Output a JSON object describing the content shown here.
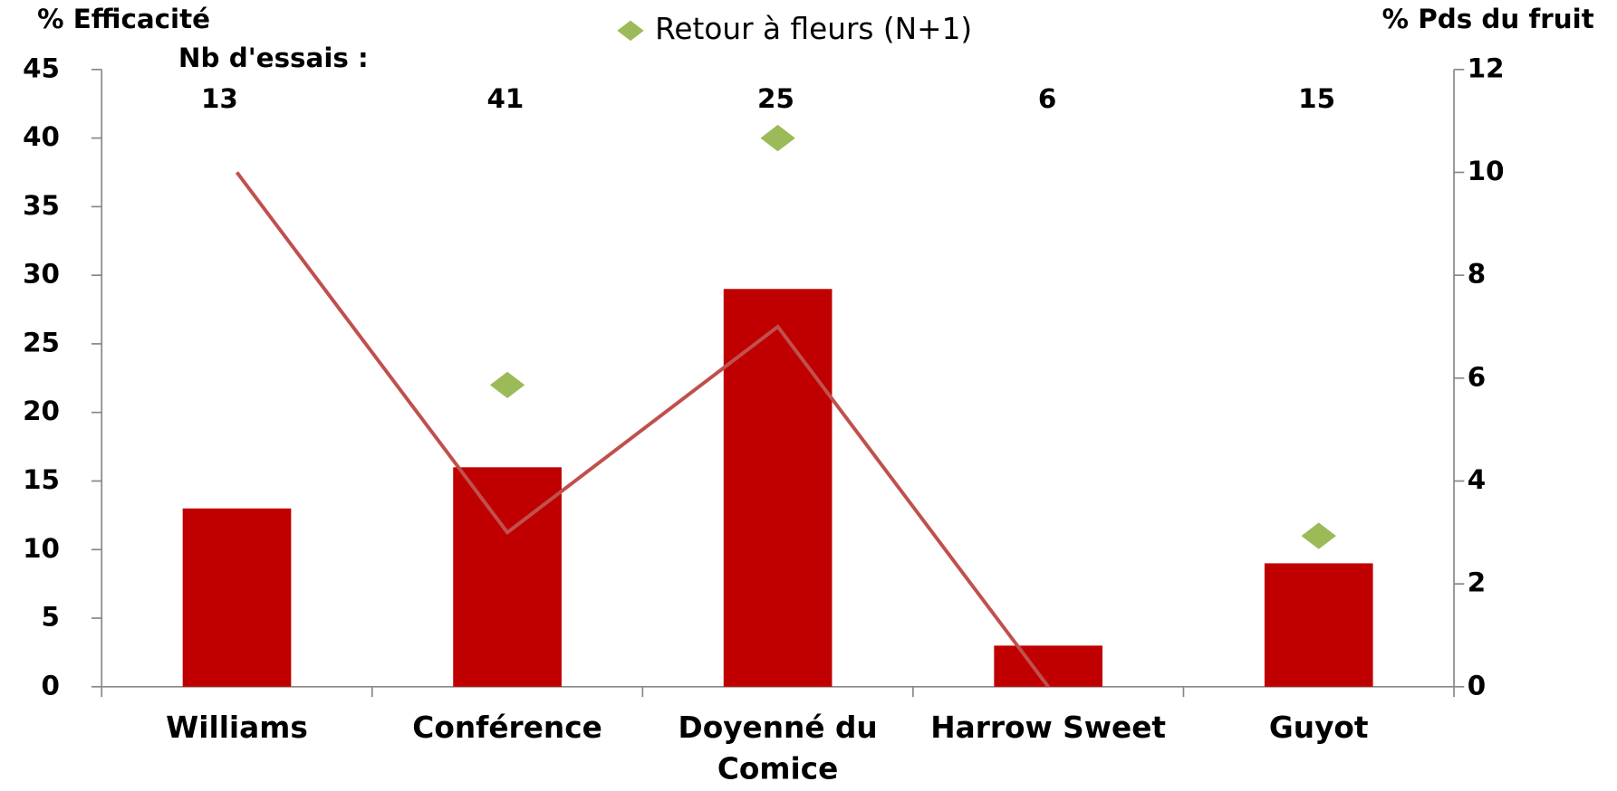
{
  "chart_data": {
    "type": "bar",
    "y_label": "% Efficacité",
    "y2_label": "% Pds du fruit",
    "categories": [
      "Williams",
      "Conférence",
      "Doyenné du Comice",
      "Harrow Sweet",
      "Guyot"
    ],
    "trials": {
      "label": "Nb d'essais :",
      "values": [
        13,
        41,
        25,
        6,
        15
      ]
    },
    "series": [
      {
        "type": "bar",
        "color": "#c00000",
        "values": [
          13,
          16,
          29,
          3,
          9
        ]
      },
      {
        "type": "line",
        "axis": "y2",
        "color": "#c0504d",
        "values": [
          10,
          3,
          7,
          0,
          null
        ]
      },
      {
        "type": "scatter",
        "name": "Retour à fleurs (N+1)",
        "color": "#9bbb59",
        "values": [
          null,
          22,
          40,
          null,
          11
        ]
      }
    ],
    "ylim": [
      0,
      45
    ],
    "yticks": [
      0,
      5,
      10,
      15,
      20,
      25,
      30,
      35,
      40,
      45
    ],
    "y2lim": [
      0,
      12
    ],
    "y2ticks": [
      0,
      2,
      4,
      6,
      8,
      10,
      12
    ],
    "legend": "top"
  }
}
